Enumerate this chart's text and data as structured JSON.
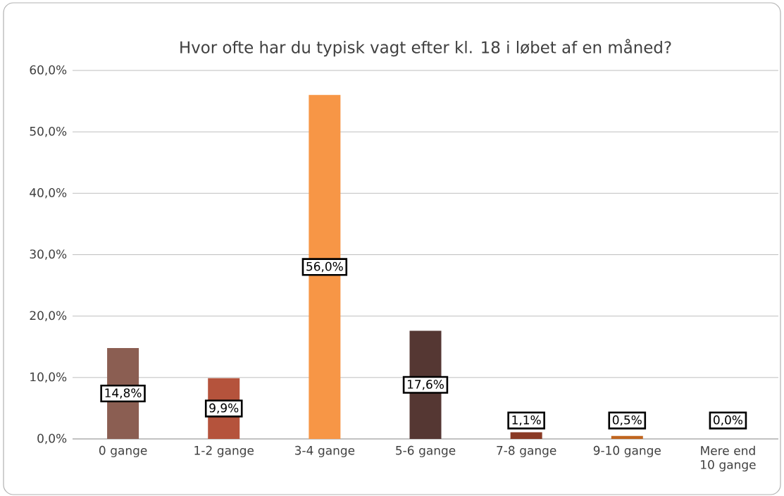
{
  "chart_data": {
    "type": "bar",
    "title": "Hvor ofte har du typisk vagt efter kl. 18 i løbet af en måned?",
    "categories": [
      "0 gange",
      "1-2 gange",
      "3-4 gange",
      "5-6 gange",
      "7-8 gange",
      "9-10 gange",
      "Mere end 10 gange"
    ],
    "values": [
      14.8,
      9.9,
      56.0,
      17.6,
      1.1,
      0.5,
      0.0
    ],
    "colors": [
      "#8b5e52",
      "#b5533c",
      "#f79646",
      "#553733",
      "#8a3a25",
      "#c0651f",
      "#9b4a1f"
    ],
    "value_labels": [
      "14,8%",
      "9,9%",
      "56,0%",
      "17,6%",
      "1,1%",
      "0,5%",
      "0,0%"
    ],
    "ylim": [
      0,
      60
    ],
    "yticks": [
      {
        "value": 0,
        "label": "0,0%"
      },
      {
        "value": 10,
        "label": "10,0%"
      },
      {
        "value": 20,
        "label": "20,0%"
      },
      {
        "value": 30,
        "label": "30,0%"
      },
      {
        "value": 40,
        "label": "40,0%"
      },
      {
        "value": 50,
        "label": "50,0%"
      },
      {
        "value": 60,
        "label": "60,0%"
      }
    ],
    "grid": "y"
  }
}
